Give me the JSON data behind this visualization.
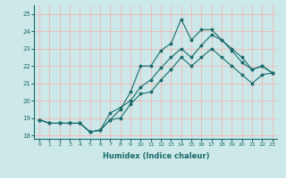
{
  "xlabel": "Humidex (Indice chaleur)",
  "ylabel": "",
  "xlim": [
    -0.5,
    23.5
  ],
  "ylim": [
    17.8,
    25.5
  ],
  "xticks": [
    0,
    1,
    2,
    3,
    4,
    5,
    6,
    7,
    8,
    9,
    10,
    11,
    12,
    13,
    14,
    15,
    16,
    17,
    18,
    19,
    20,
    21,
    22,
    23
  ],
  "yticks": [
    18,
    19,
    20,
    21,
    22,
    23,
    24,
    25
  ],
  "bg_color": "#cce8e8",
  "grid_color": "#f0b8b8",
  "line_color": "#1a6b6b",
  "series": [
    [
      18.9,
      18.7,
      18.7,
      18.7,
      18.7,
      18.2,
      18.3,
      18.9,
      19.5,
      20.5,
      22.0,
      22.0,
      22.9,
      23.3,
      24.7,
      23.5,
      24.1,
      24.1,
      23.5,
      22.9,
      22.2,
      21.8,
      22.0,
      21.6
    ],
    [
      18.9,
      18.7,
      18.7,
      18.7,
      18.7,
      18.2,
      18.3,
      18.9,
      19.0,
      19.8,
      20.4,
      20.5,
      21.2,
      21.8,
      22.5,
      22.0,
      22.5,
      23.0,
      22.5,
      22.0,
      21.5,
      21.0,
      21.5,
      21.6
    ],
    [
      18.9,
      18.7,
      18.7,
      18.7,
      18.7,
      18.2,
      18.3,
      19.3,
      19.6,
      20.0,
      20.8,
      21.2,
      21.9,
      22.5,
      23.0,
      22.5,
      23.2,
      23.8,
      23.5,
      23.0,
      22.5,
      21.8,
      22.0,
      21.6
    ]
  ]
}
